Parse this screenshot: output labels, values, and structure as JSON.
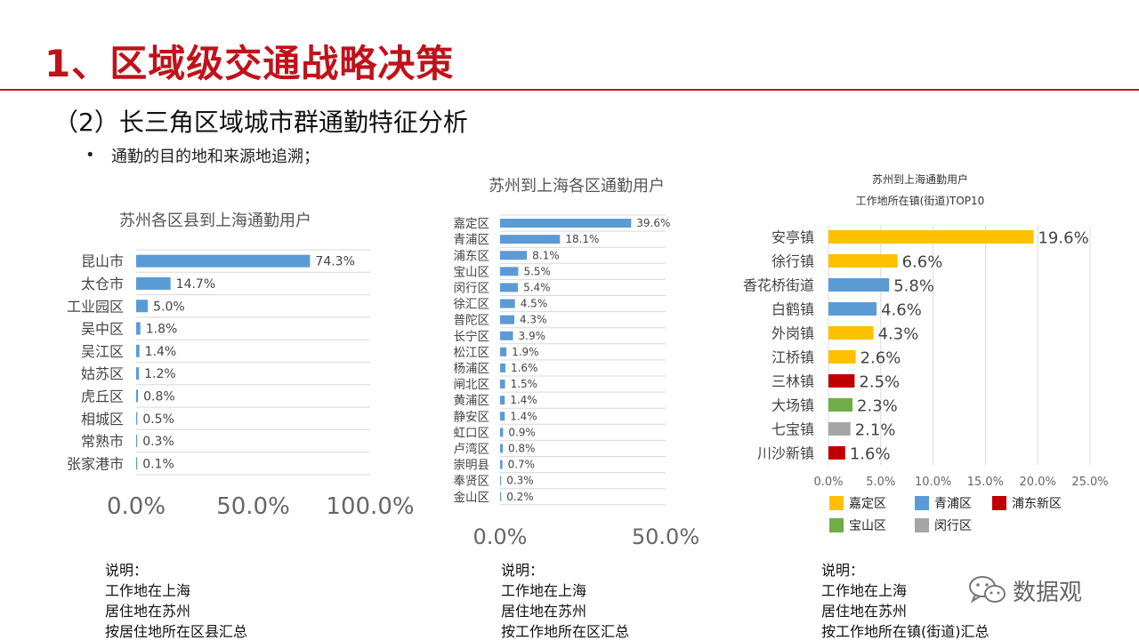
{
  "slide": {
    "title": "1、区域级交通战略决策",
    "subtitle": "（2）长三角区域城市群通勤特征分析",
    "bullet_marker": "•",
    "bullet": "通勤的目的地和来源地追溯；"
  },
  "chart_data": [
    {
      "type": "bar",
      "orientation": "horizontal",
      "title": "苏州各区县到上海通勤用户",
      "categories": [
        "昆山市",
        "太仓市",
        "工业园区",
        "吴中区",
        "吴江区",
        "姑苏区",
        "虎丘区",
        "相城区",
        "常熟市",
        "张家港市"
      ],
      "values": [
        74.3,
        14.7,
        5.0,
        1.8,
        1.4,
        1.2,
        0.8,
        0.5,
        0.3,
        0.1
      ],
      "value_labels": [
        "74.3%",
        "14.7%",
        "5.0%",
        "1.8%",
        "1.4%",
        "1.2%",
        "0.8%",
        "0.5%",
        "0.3%",
        "0.1%"
      ],
      "xlim": [
        0,
        100
      ],
      "ticks": [
        0,
        50,
        100
      ],
      "tick_labels": [
        "0.0%",
        "50.0%",
        "100.0%"
      ],
      "grid": "horizontal",
      "color": "#5b9bd5"
    },
    {
      "type": "bar",
      "orientation": "horizontal",
      "title": "苏州到上海各区通勤用户",
      "categories": [
        "嘉定区",
        "青浦区",
        "浦东区",
        "宝山区",
        "闵行区",
        "徐汇区",
        "普陀区",
        "长宁区",
        "松江区",
        "杨浦区",
        "闸北区",
        "黄浦区",
        "静安区",
        "虹口区",
        "卢湾区",
        "崇明县",
        "奉贤区",
        "金山区"
      ],
      "values": [
        39.6,
        18.1,
        8.1,
        5.5,
        5.4,
        4.5,
        4.3,
        3.9,
        1.9,
        1.6,
        1.5,
        1.4,
        1.4,
        0.9,
        0.8,
        0.7,
        0.3,
        0.2
      ],
      "value_labels": [
        "39.6%",
        "18.1%",
        "8.1%",
        "5.5%",
        "5.4%",
        "4.5%",
        "4.3%",
        "3.9%",
        "1.9%",
        "1.6%",
        "1.5%",
        "1.4%",
        "1.4%",
        "0.9%",
        "0.8%",
        "0.7%",
        "0.3%",
        "0.2%"
      ],
      "xlim": [
        0,
        50
      ],
      "ticks": [
        0,
        50
      ],
      "tick_labels": [
        "0.0%",
        "50.0%"
      ],
      "grid": "horizontal",
      "color": "#5b9bd5"
    },
    {
      "type": "bar",
      "orientation": "horizontal",
      "title": [
        "苏州到上海通勤用户",
        "工作地所在镇(街道)TOP10"
      ],
      "categories": [
        "安亭镇",
        "徐行镇",
        "香花桥街道",
        "白鹤镇",
        "外岗镇",
        "江桥镇",
        "三林镇",
        "大场镇",
        "七宝镇",
        "川沙新镇"
      ],
      "values": [
        19.6,
        6.6,
        5.8,
        4.6,
        4.3,
        2.6,
        2.5,
        2.3,
        2.1,
        1.6
      ],
      "value_labels": [
        "19.6%",
        "6.6%",
        "5.8%",
        "4.6%",
        "4.3%",
        "2.6%",
        "2.5%",
        "2.3%",
        "2.1%",
        "1.6%"
      ],
      "district": [
        "嘉定区",
        "嘉定区",
        "青浦区",
        "青浦区",
        "嘉定区",
        "嘉定区",
        "浦东新区",
        "宝山区",
        "闵行区",
        "浦东新区"
      ],
      "xlim": [
        0,
        25
      ],
      "ticks": [
        0,
        5,
        10,
        15,
        20,
        25
      ],
      "tick_labels": [
        "0.0%",
        "5.0%",
        "10.0%",
        "15.0%",
        "20.0%",
        "25.0%"
      ],
      "grid": "vertical",
      "legend": [
        {
          "name": "嘉定区",
          "color": "#ffc000"
        },
        {
          "name": "青浦区",
          "color": "#5b9bd5"
        },
        {
          "name": "浦东新区",
          "color": "#c00000"
        },
        {
          "name": "宝山区",
          "color": "#70ad47"
        },
        {
          "name": "闵行区",
          "color": "#a5a5a5"
        }
      ],
      "legend_position": "bottom"
    }
  ],
  "notes": [
    {
      "heading": "说明：",
      "lines": [
        "工作地在上海",
        "居住地在苏州",
        "按居住地所在区县汇总"
      ]
    },
    {
      "heading": "说明：",
      "lines": [
        "工作地在上海",
        "居住地在苏州",
        "按工作地所在区汇总"
      ]
    },
    {
      "heading": "说明：",
      "lines": [
        "工作地在上海",
        "居住地在苏州",
        "按工作地所在镇(街道)汇总"
      ]
    }
  ],
  "watermark": {
    "icon": "wechat-icon",
    "text": "数据观"
  }
}
